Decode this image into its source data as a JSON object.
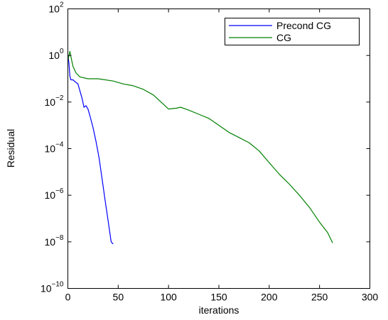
{
  "chart_data": {
    "type": "line",
    "xlabel": "iterations",
    "ylabel": "Residual",
    "xlim": [
      0,
      300
    ],
    "ylim": [
      1e-10,
      100
    ],
    "yscale": "log",
    "grid": false,
    "legend_position": "top-right",
    "xticks": [
      "0",
      "50",
      "100",
      "150",
      "200",
      "250",
      "300"
    ],
    "yticks": [
      {
        "base": "10",
        "exp": "2",
        "value": 100
      },
      {
        "base": "10",
        "exp": "0",
        "value": 1
      },
      {
        "base": "10",
        "exp": "−2",
        "value": 0.01
      },
      {
        "base": "10",
        "exp": "−4",
        "value": 0.0001
      },
      {
        "base": "10",
        "exp": "−6",
        "value": 1e-06
      },
      {
        "base": "10",
        "exp": "−8",
        "value": 1e-08
      },
      {
        "base": "10",
        "exp": "−10",
        "value": 1e-10
      }
    ],
    "series": [
      {
        "name": "Precond CG",
        "color": "#0000ff",
        "x": [
          0,
          1,
          2,
          3,
          5,
          8,
          10,
          12,
          14,
          16,
          18,
          20,
          22,
          25,
          28,
          31,
          34,
          37,
          40,
          43,
          45
        ],
        "y": [
          1.0,
          0.5,
          0.13,
          0.09,
          0.09,
          0.07,
          0.06,
          0.03,
          0.015,
          0.006,
          0.007,
          0.005,
          0.0025,
          0.0008,
          0.0002,
          4e-05,
          5e-06,
          6e-07,
          8e-08,
          1e-08,
          8e-09
        ]
      },
      {
        "name": "CG",
        "color": "#008000",
        "x": [
          0,
          2,
          3,
          5,
          8,
          12,
          20,
          30,
          45,
          55,
          65,
          75,
          85,
          95,
          100,
          108,
          112,
          120,
          130,
          140,
          150,
          160,
          170,
          180,
          190,
          200,
          210,
          220,
          230,
          240,
          250,
          258,
          263
        ],
        "y": [
          0.6,
          1.5,
          0.9,
          0.35,
          0.18,
          0.12,
          0.1,
          0.1,
          0.08,
          0.06,
          0.05,
          0.035,
          0.02,
          0.008,
          0.005,
          0.0055,
          0.006,
          0.0045,
          0.003,
          0.002,
          0.001,
          0.0005,
          0.0003,
          0.00018,
          8e-05,
          2.5e-05,
          8e-06,
          3e-06,
          1e-06,
          3e-07,
          7e-08,
          2.5e-08,
          9e-09
        ]
      }
    ]
  }
}
